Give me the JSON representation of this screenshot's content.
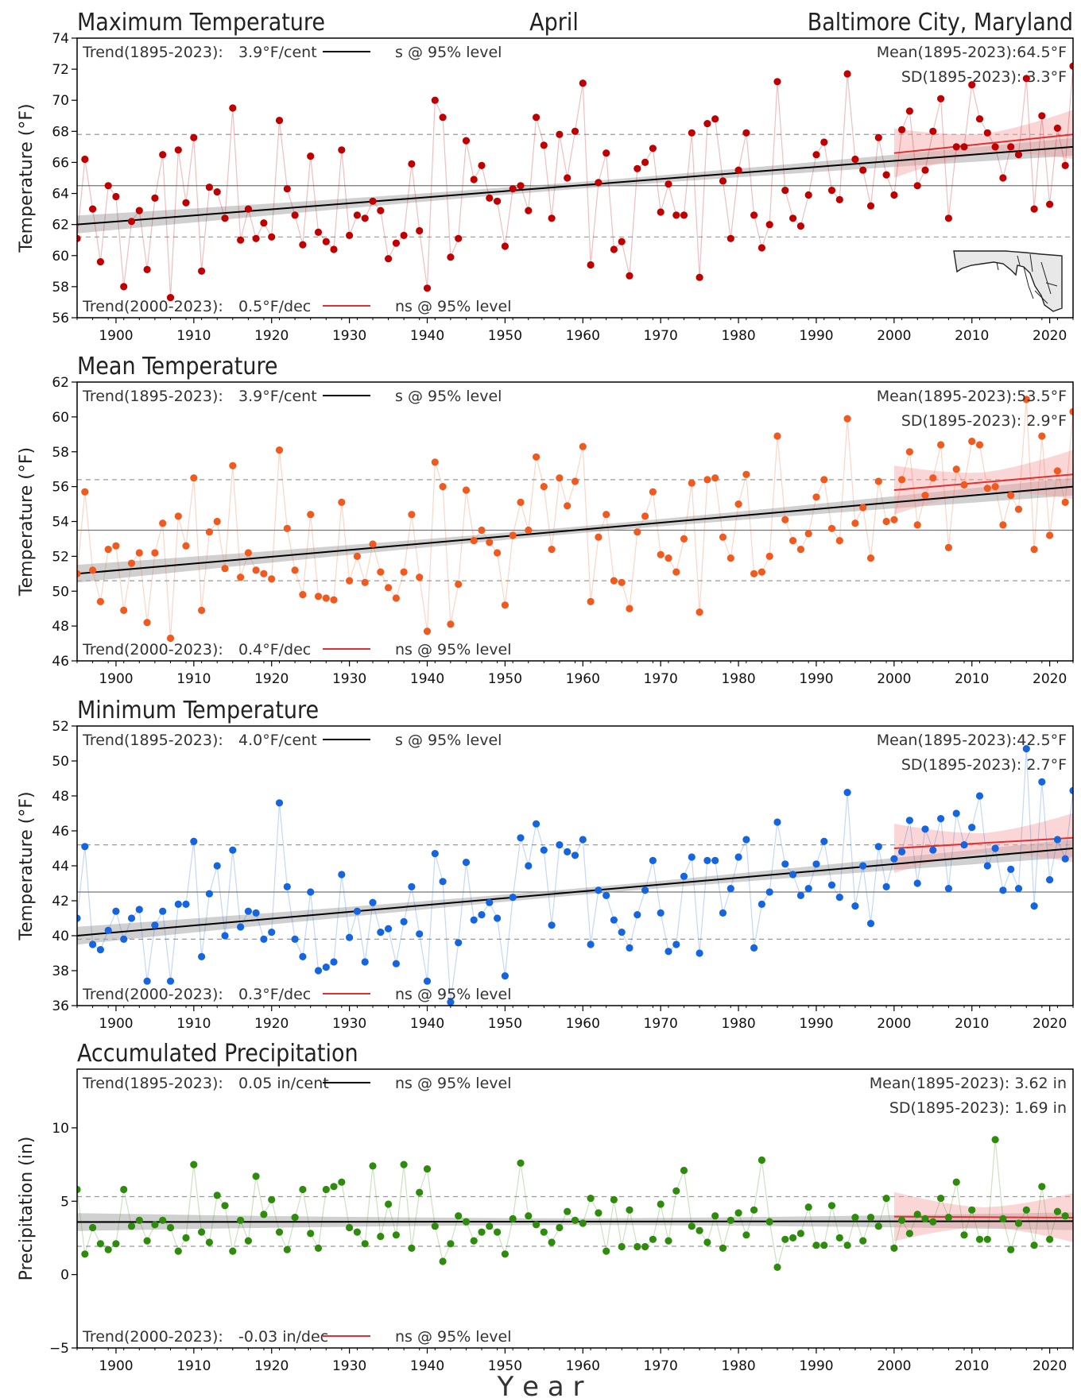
{
  "header": {
    "month": "April",
    "location": "Baltimore City, Maryland"
  },
  "xaxis_label": "Y e a r",
  "chart_data": [
    {
      "type": "scatter",
      "title": "Maximum Temperature",
      "ylabel": "Temperature (°F)",
      "color": "#c00000",
      "xlim": [
        1895,
        2023
      ],
      "ylim": [
        56,
        74
      ],
      "yticks": [
        56,
        58,
        60,
        62,
        64,
        66,
        68,
        70,
        72,
        74
      ],
      "xticks": [
        1900,
        1910,
        1920,
        1930,
        1940,
        1950,
        1960,
        1970,
        1980,
        1990,
        2000,
        2010,
        2020
      ],
      "trend_long": {
        "label": "Trend(1895-2023):",
        "value": "3.9°F/cent",
        "sig": "s @ 95% level",
        "start": 62.0,
        "end": 67.0
      },
      "trend_recent": {
        "label": "Trend(2000-2023):",
        "value": "0.5°F/dec",
        "sig": "ns @ 95% level",
        "start": 66.6,
        "end": 67.8
      },
      "mean_text": "Mean(1895-2023):64.5°F",
      "sd_text": "SD(1895-2023): 3.3°F",
      "mean": 64.5,
      "sd": 3.3,
      "x_start": 1895,
      "values": [
        61.1,
        66.2,
        63.0,
        59.6,
        64.5,
        63.8,
        58.0,
        62.2,
        62.9,
        59.1,
        63.7,
        66.5,
        57.3,
        66.8,
        63.4,
        67.6,
        59.0,
        64.4,
        64.1,
        62.4,
        69.5,
        61.0,
        63.0,
        61.1,
        62.1,
        61.2,
        68.7,
        64.3,
        62.6,
        60.7,
        66.4,
        61.5,
        60.9,
        60.4,
        66.8,
        61.3,
        62.6,
        62.4,
        63.5,
        62.9,
        59.8,
        60.8,
        61.3,
        65.9,
        61.6,
        57.9,
        70.0,
        68.9,
        59.9,
        61.1,
        67.4,
        64.9,
        65.8,
        63.7,
        63.5,
        60.6,
        64.3,
        64.5,
        62.9,
        68.9,
        67.1,
        62.4,
        67.8,
        65.0,
        68.0,
        71.1,
        59.4,
        64.7,
        66.6,
        60.4,
        60.9,
        58.7,
        65.6,
        66.0,
        66.9,
        62.8,
        64.6,
        62.6,
        62.6,
        67.9,
        58.6,
        68.5,
        68.8,
        64.8,
        61.1,
        65.5,
        67.9,
        62.6,
        60.5,
        62.0,
        71.2,
        64.2,
        62.4,
        61.9,
        63.9,
        66.5,
        67.3,
        64.2,
        63.6,
        71.7,
        66.2,
        65.5,
        63.2,
        67.6,
        65.2,
        63.9,
        68.1,
        69.3,
        64.5,
        65.5,
        68.0,
        70.1,
        62.4,
        67.0,
        67.0,
        71.0,
        68.8,
        67.9,
        67.0,
        65.0,
        67.0,
        66.5,
        71.4,
        63.0,
        69.0,
        63.3,
        68.2,
        65.8,
        72.2
      ]
    },
    {
      "type": "scatter",
      "title": "Mean Temperature",
      "ylabel": "Temperature (°F)",
      "color": "#f05a1e",
      "xlim": [
        1895,
        2023
      ],
      "ylim": [
        46,
        62
      ],
      "yticks": [
        46,
        48,
        50,
        52,
        54,
        56,
        58,
        60,
        62
      ],
      "xticks": [
        1900,
        1910,
        1920,
        1930,
        1940,
        1950,
        1960,
        1970,
        1980,
        1990,
        2000,
        2010,
        2020
      ],
      "trend_long": {
        "label": "Trend(1895-2023):",
        "value": "3.9°F/cent",
        "sig": "s @ 95% level",
        "start": 51.0,
        "end": 56.0
      },
      "trend_recent": {
        "label": "Trend(2000-2023):",
        "value": "0.4°F/dec",
        "sig": "ns @ 95% level",
        "start": 55.8,
        "end": 56.7
      },
      "mean_text": "Mean(1895-2023):53.5°F",
      "sd_text": "SD(1895-2023): 2.9°F",
      "mean": 53.5,
      "sd": 2.9,
      "x_start": 1895,
      "values": [
        51.0,
        55.7,
        51.2,
        49.4,
        52.4,
        52.6,
        48.9,
        51.6,
        52.2,
        48.2,
        52.2,
        53.9,
        47.3,
        54.3,
        52.6,
        56.5,
        48.9,
        53.4,
        54.0,
        51.3,
        57.2,
        50.8,
        52.2,
        51.2,
        51.0,
        50.7,
        58.1,
        53.6,
        51.2,
        49.8,
        54.4,
        49.7,
        49.6,
        49.5,
        55.1,
        50.6,
        52.0,
        50.5,
        52.7,
        51.1,
        50.2,
        49.6,
        51.1,
        54.4,
        50.8,
        47.7,
        57.4,
        56.0,
        48.1,
        50.4,
        55.8,
        52.9,
        53.5,
        52.8,
        52.2,
        49.2,
        53.2,
        55.1,
        53.5,
        57.7,
        56.0,
        52.4,
        56.5,
        54.9,
        56.3,
        58.3,
        49.4,
        53.1,
        54.4,
        50.6,
        50.5,
        49.0,
        53.4,
        54.3,
        55.7,
        52.1,
        51.9,
        51.1,
        53.0,
        56.2,
        48.8,
        56.4,
        56.5,
        53.1,
        51.9,
        55.0,
        56.7,
        51.0,
        51.1,
        52.0,
        58.9,
        54.1,
        52.9,
        52.4,
        53.3,
        55.4,
        56.4,
        53.6,
        52.9,
        59.9,
        53.9,
        54.8,
        51.9,
        56.3,
        54.0,
        54.1,
        56.4,
        58.0,
        53.8,
        55.5,
        56.5,
        58.4,
        52.5,
        57.0,
        56.1,
        58.6,
        58.4,
        55.9,
        56.0,
        53.8,
        55.5,
        54.7,
        61.0,
        52.4,
        58.9,
        53.2,
        56.9,
        55.1,
        60.3
      ]
    },
    {
      "type": "scatter",
      "title": "Minimum Temperature",
      "ylabel": "Temperature (°F)",
      "color": "#1565e0",
      "xlim": [
        1895,
        2023
      ],
      "ylim": [
        36,
        52
      ],
      "yticks": [
        36,
        38,
        40,
        42,
        44,
        46,
        48,
        50,
        52
      ],
      "xticks": [
        1900,
        1910,
        1920,
        1930,
        1940,
        1950,
        1960,
        1970,
        1980,
        1990,
        2000,
        2010,
        2020
      ],
      "trend_long": {
        "label": "Trend(1895-2023):",
        "value": "4.0°F/cent",
        "sig": "s @ 95% level",
        "start": 40.0,
        "end": 45.0
      },
      "trend_recent": {
        "label": "Trend(2000-2023):",
        "value": "0.3°F/dec",
        "sig": "ns @ 95% level",
        "start": 45.0,
        "end": 45.6
      },
      "mean_text": "Mean(1895-2023):42.5°F",
      "sd_text": "SD(1895-2023): 2.7°F",
      "mean": 42.5,
      "sd": 2.7,
      "x_start": 1895,
      "values": [
        41.0,
        45.1,
        39.5,
        39.2,
        40.3,
        41.4,
        39.8,
        41.0,
        41.5,
        37.4,
        40.6,
        41.4,
        37.4,
        41.8,
        41.8,
        45.4,
        38.8,
        42.4,
        44.0,
        40.0,
        44.9,
        40.5,
        41.4,
        41.3,
        39.8,
        40.2,
        47.6,
        42.8,
        39.8,
        38.8,
        42.5,
        38.0,
        38.2,
        38.5,
        43.5,
        39.9,
        41.4,
        38.5,
        41.9,
        40.2,
        40.4,
        38.4,
        40.8,
        42.8,
        40.1,
        37.4,
        44.7,
        43.1,
        36.2,
        39.6,
        44.2,
        40.9,
        41.2,
        41.9,
        41.0,
        37.7,
        42.2,
        45.6,
        44.0,
        46.4,
        44.9,
        40.6,
        45.2,
        44.8,
        44.6,
        45.5,
        39.5,
        42.6,
        42.3,
        40.9,
        40.2,
        39.3,
        41.2,
        42.6,
        44.3,
        41.3,
        39.1,
        39.5,
        43.4,
        44.5,
        39.0,
        44.3,
        44.3,
        41.3,
        42.7,
        44.5,
        45.5,
        39.3,
        41.8,
        42.5,
        46.5,
        44.1,
        43.5,
        42.3,
        42.7,
        44.1,
        45.4,
        42.9,
        42.2,
        48.2,
        41.7,
        44.0,
        40.7,
        45.1,
        42.8,
        44.4,
        44.8,
        46.6,
        43.0,
        46.1,
        44.9,
        46.7,
        42.7,
        47.0,
        45.2,
        46.2,
        48.0,
        44.0,
        45.0,
        42.6,
        43.8,
        42.7,
        50.7,
        41.7,
        48.8,
        43.2,
        45.5,
        44.4,
        48.3
      ]
    },
    {
      "type": "scatter",
      "title": "Accumulated Precipitation",
      "ylabel": "Precipitation (in)",
      "color": "#2e8b0c",
      "xlim": [
        1895,
        2023
      ],
      "ylim": [
        -5,
        14
      ],
      "yticks": [
        -5,
        0,
        5,
        10
      ],
      "xticks": [
        1900,
        1910,
        1920,
        1930,
        1940,
        1950,
        1960,
        1970,
        1980,
        1990,
        2000,
        2010,
        2020
      ],
      "trend_long": {
        "label": "Trend(1895-2023):",
        "value": "0.05 in/cent",
        "sig": "ns @ 95% level",
        "start": 3.58,
        "end": 3.64
      },
      "trend_recent": {
        "label": "Trend(2000-2023):",
        "value": "-0.03 in/dec",
        "sig": "ns @ 95% level",
        "start": 3.95,
        "end": 3.88
      },
      "mean_text": "Mean(1895-2023): 3.62 in",
      "sd_text": "SD(1895-2023): 1.69 in",
      "mean": 3.62,
      "sd": 1.69,
      "x_start": 1895,
      "values": [
        5.8,
        1.4,
        3.2,
        2.1,
        1.7,
        2.1,
        5.8,
        3.3,
        3.7,
        2.3,
        3.4,
        3.7,
        3.2,
        1.6,
        2.5,
        7.5,
        2.9,
        2.2,
        5.4,
        4.7,
        1.6,
        3.7,
        2.3,
        6.7,
        4.1,
        5.1,
        2.9,
        1.7,
        3.9,
        5.8,
        2.8,
        1.8,
        5.8,
        6.0,
        6.3,
        3.2,
        2.9,
        2.1,
        7.4,
        2.6,
        4.8,
        2.7,
        7.5,
        1.8,
        5.6,
        7.2,
        3.3,
        0.9,
        2.1,
        4.0,
        3.6,
        2.3,
        2.9,
        3.3,
        2.9,
        1.4,
        3.8,
        7.6,
        4.0,
        3.4,
        2.9,
        2.2,
        3.2,
        4.3,
        3.7,
        3.5,
        5.2,
        4.2,
        1.6,
        5.1,
        1.9,
        4.4,
        1.9,
        1.9,
        2.4,
        4.8,
        2.3,
        5.7,
        7.1,
        3.3,
        3.0,
        2.2,
        4.0,
        1.8,
        3.7,
        4.2,
        2.7,
        4.4,
        7.8,
        3.6,
        0.5,
        2.4,
        2.5,
        2.8,
        4.6,
        2.0,
        2.0,
        4.7,
        2.5,
        2.0,
        3.9,
        2.3,
        3.9,
        3.3,
        5.2,
        1.8,
        3.7,
        2.8,
        4.1,
        3.8,
        3.6,
        5.2,
        3.9,
        6.3,
        2.7,
        4.4,
        2.4,
        2.4,
        9.2,
        3.8,
        1.7,
        3.5,
        4.4,
        2.0,
        6.0,
        2.4,
        4.3,
        4.0
      ]
    }
  ]
}
